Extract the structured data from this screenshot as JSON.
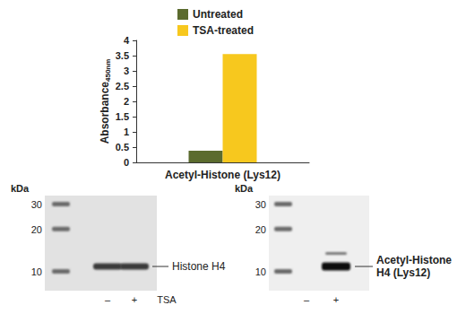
{
  "chart_data": {
    "type": "bar",
    "y_label": "Absorbance",
    "y_label_subscript": "450nm",
    "categories": [
      "Acetyl-Histone (Lys12)"
    ],
    "series": [
      {
        "name": "Untreated",
        "color": "#5b6b2e",
        "values": [
          0.38
        ]
      },
      {
        "name": "TSA-treated",
        "color": "#f7c81e",
        "values": [
          3.55
        ]
      }
    ],
    "ylim": [
      0,
      4
    ],
    "yticks": [
      0,
      0.5,
      1,
      1.5,
      2,
      2.5,
      3,
      3.5,
      4
    ],
    "grid": false,
    "legend": "top"
  },
  "blots": [
    {
      "unit": "kDa",
      "markers": [
        30,
        20,
        10
      ],
      "lanes": [
        "–",
        "+"
      ],
      "treatment": "TSA",
      "band_in_lane": [
        true,
        true
      ],
      "label": [
        "Histone H4"
      ]
    },
    {
      "unit": "kDa",
      "markers": [
        30,
        20,
        10
      ],
      "lanes": [
        "–",
        "+"
      ],
      "band_in_lane": [
        false,
        true
      ],
      "label": [
        "Acetyl-Histone",
        "H4 (Lys12)"
      ]
    }
  ]
}
